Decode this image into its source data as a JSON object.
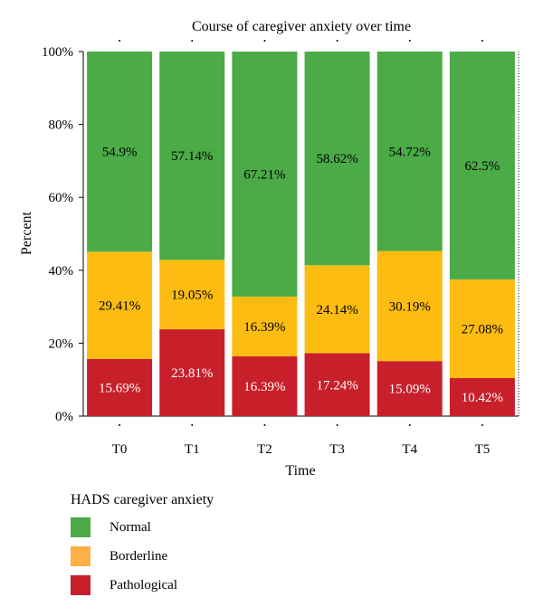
{
  "chart_data": {
    "type": "bar",
    "stacked": true,
    "title": "Course of caregiver anxiety over time",
    "xlabel": "Time",
    "ylabel": "Percent",
    "ylim": [
      0,
      100
    ],
    "yticks": [
      "0%",
      "20%",
      "40%",
      "60%",
      "80%",
      "100%"
    ],
    "categories": [
      "T0",
      "T1",
      "T2",
      "T3",
      "T4",
      "T5"
    ],
    "series": [
      {
        "name": "Pathological",
        "color": "#c8202b",
        "label_color": "#ffffff",
        "values": [
          15.69,
          23.81,
          16.39,
          17.24,
          15.09,
          10.42
        ],
        "labels": [
          "15.69%",
          "23.81%",
          "16.39%",
          "17.24%",
          "15.09%",
          "10.42%"
        ]
      },
      {
        "name": "Borderline",
        "color": "#fdbc11",
        "label_color": "#000000",
        "values": [
          29.41,
          19.05,
          16.39,
          24.14,
          30.19,
          27.08
        ],
        "labels": [
          "29.41%",
          "19.05%",
          "16.39%",
          "24.14%",
          "30.19%",
          "27.08%"
        ]
      },
      {
        "name": "Normal",
        "color": "#4aab47",
        "label_color": "#000000",
        "values": [
          54.9,
          57.14,
          67.21,
          58.62,
          54.72,
          62.5
        ],
        "labels": [
          "54.9%",
          "57.14%",
          "67.21%",
          "58.62%",
          "54.72%",
          "62.5%"
        ]
      }
    ],
    "grid": false,
    "legend": {
      "title": "HADS caregiver anxiety",
      "position": "bottom-left",
      "items": [
        {
          "label": "Normal",
          "color": "#4aab47"
        },
        {
          "label": "Borderline",
          "color": "#fdb046"
        },
        {
          "label": "Pathological",
          "color": "#c8202b"
        }
      ]
    }
  }
}
